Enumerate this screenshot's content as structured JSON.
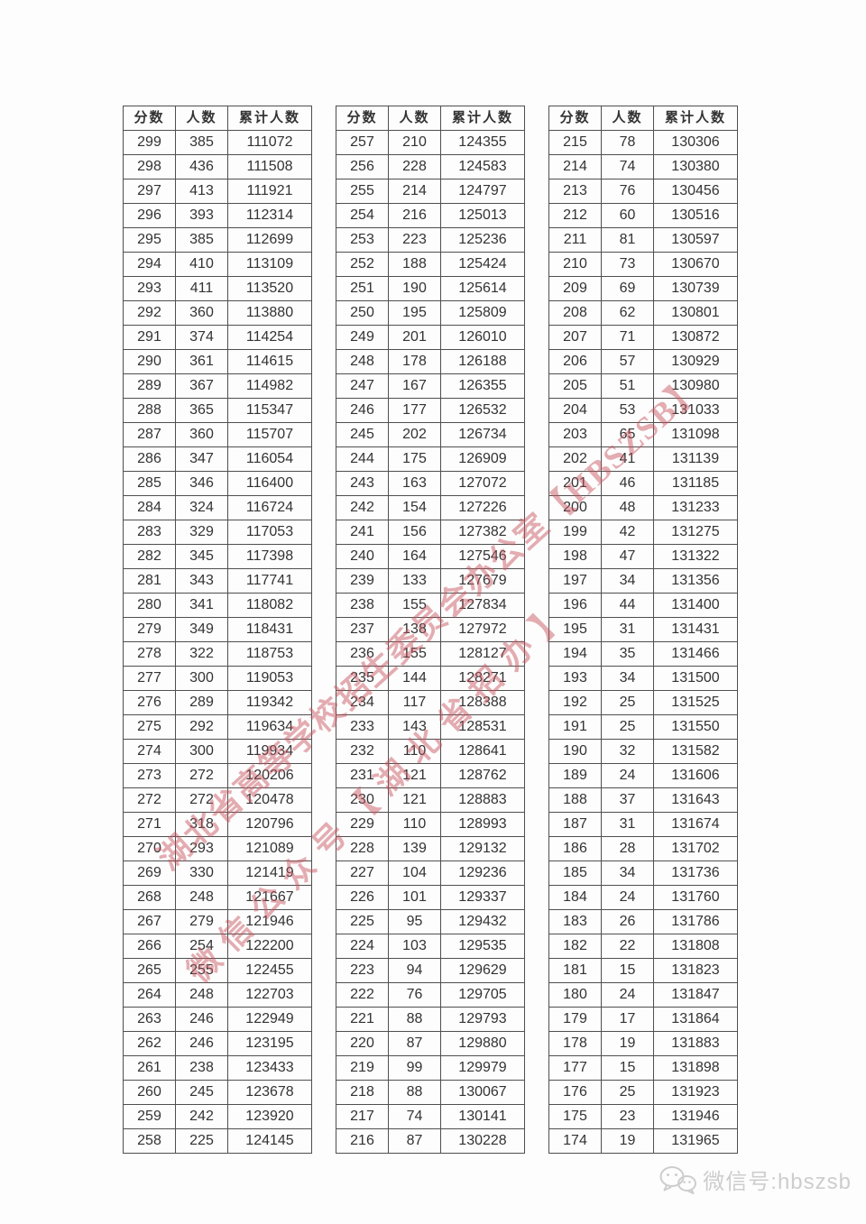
{
  "table_headers": [
    "分数",
    "人数",
    "累计人数"
  ],
  "tables": [
    {
      "name": "scores-299-258",
      "rows": [
        [
          299,
          385,
          111072
        ],
        [
          298,
          436,
          111508
        ],
        [
          297,
          413,
          111921
        ],
        [
          296,
          393,
          112314
        ],
        [
          295,
          385,
          112699
        ],
        [
          294,
          410,
          113109
        ],
        [
          293,
          411,
          113520
        ],
        [
          292,
          360,
          113880
        ],
        [
          291,
          374,
          114254
        ],
        [
          290,
          361,
          114615
        ],
        [
          289,
          367,
          114982
        ],
        [
          288,
          365,
          115347
        ],
        [
          287,
          360,
          115707
        ],
        [
          286,
          347,
          116054
        ],
        [
          285,
          346,
          116400
        ],
        [
          284,
          324,
          116724
        ],
        [
          283,
          329,
          117053
        ],
        [
          282,
          345,
          117398
        ],
        [
          281,
          343,
          117741
        ],
        [
          280,
          341,
          118082
        ],
        [
          279,
          349,
          118431
        ],
        [
          278,
          322,
          118753
        ],
        [
          277,
          300,
          119053
        ],
        [
          276,
          289,
          119342
        ],
        [
          275,
          292,
          119634
        ],
        [
          274,
          300,
          119934
        ],
        [
          273,
          272,
          120206
        ],
        [
          272,
          272,
          120478
        ],
        [
          271,
          318,
          120796
        ],
        [
          270,
          293,
          121089
        ],
        [
          269,
          330,
          121419
        ],
        [
          268,
          248,
          121667
        ],
        [
          267,
          279,
          121946
        ],
        [
          266,
          254,
          122200
        ],
        [
          265,
          255,
          122455
        ],
        [
          264,
          248,
          122703
        ],
        [
          263,
          246,
          122949
        ],
        [
          262,
          246,
          123195
        ],
        [
          261,
          238,
          123433
        ],
        [
          260,
          245,
          123678
        ],
        [
          259,
          242,
          123920
        ],
        [
          258,
          225,
          124145
        ]
      ]
    },
    {
      "name": "scores-257-216",
      "rows": [
        [
          257,
          210,
          124355
        ],
        [
          256,
          228,
          124583
        ],
        [
          255,
          214,
          124797
        ],
        [
          254,
          216,
          125013
        ],
        [
          253,
          223,
          125236
        ],
        [
          252,
          188,
          125424
        ],
        [
          251,
          190,
          125614
        ],
        [
          250,
          195,
          125809
        ],
        [
          249,
          201,
          126010
        ],
        [
          248,
          178,
          126188
        ],
        [
          247,
          167,
          126355
        ],
        [
          246,
          177,
          126532
        ],
        [
          245,
          202,
          126734
        ],
        [
          244,
          175,
          126909
        ],
        [
          243,
          163,
          127072
        ],
        [
          242,
          154,
          127226
        ],
        [
          241,
          156,
          127382
        ],
        [
          240,
          164,
          127546
        ],
        [
          239,
          133,
          127679
        ],
        [
          238,
          155,
          127834
        ],
        [
          237,
          138,
          127972
        ],
        [
          236,
          155,
          128127
        ],
        [
          235,
          144,
          128271
        ],
        [
          234,
          117,
          128388
        ],
        [
          233,
          143,
          128531
        ],
        [
          232,
          110,
          128641
        ],
        [
          231,
          121,
          128762
        ],
        [
          230,
          121,
          128883
        ],
        [
          229,
          110,
          128993
        ],
        [
          228,
          139,
          129132
        ],
        [
          227,
          104,
          129236
        ],
        [
          226,
          101,
          129337
        ],
        [
          225,
          95,
          129432
        ],
        [
          224,
          103,
          129535
        ],
        [
          223,
          94,
          129629
        ],
        [
          222,
          76,
          129705
        ],
        [
          221,
          88,
          129793
        ],
        [
          220,
          87,
          129880
        ],
        [
          219,
          99,
          129979
        ],
        [
          218,
          88,
          130067
        ],
        [
          217,
          74,
          130141
        ],
        [
          216,
          87,
          130228
        ]
      ]
    },
    {
      "name": "scores-215-174",
      "rows": [
        [
          215,
          78,
          130306
        ],
        [
          214,
          74,
          130380
        ],
        [
          213,
          76,
          130456
        ],
        [
          212,
          60,
          130516
        ],
        [
          211,
          81,
          130597
        ],
        [
          210,
          73,
          130670
        ],
        [
          209,
          69,
          130739
        ],
        [
          208,
          62,
          130801
        ],
        [
          207,
          71,
          130872
        ],
        [
          206,
          57,
          130929
        ],
        [
          205,
          51,
          130980
        ],
        [
          204,
          53,
          131033
        ],
        [
          203,
          65,
          131098
        ],
        [
          202,
          41,
          131139
        ],
        [
          201,
          46,
          131185
        ],
        [
          200,
          48,
          131233
        ],
        [
          199,
          42,
          131275
        ],
        [
          198,
          47,
          131322
        ],
        [
          197,
          34,
          131356
        ],
        [
          196,
          44,
          131400
        ],
        [
          195,
          31,
          131431
        ],
        [
          194,
          35,
          131466
        ],
        [
          193,
          34,
          131500
        ],
        [
          192,
          25,
          131525
        ],
        [
          191,
          25,
          131550
        ],
        [
          190,
          32,
          131582
        ],
        [
          189,
          24,
          131606
        ],
        [
          188,
          37,
          131643
        ],
        [
          187,
          31,
          131674
        ],
        [
          186,
          28,
          131702
        ],
        [
          185,
          34,
          131736
        ],
        [
          184,
          24,
          131760
        ],
        [
          183,
          26,
          131786
        ],
        [
          182,
          22,
          131808
        ],
        [
          181,
          15,
          131823
        ],
        [
          180,
          24,
          131847
        ],
        [
          179,
          17,
          131864
        ],
        [
          178,
          19,
          131883
        ],
        [
          177,
          15,
          131898
        ],
        [
          176,
          25,
          131923
        ],
        [
          175,
          23,
          131946
        ],
        [
          174,
          19,
          131965
        ]
      ]
    }
  ],
  "watermark": {
    "line1": "湖北省高等学校招生委员会办公室【HBSZSB】",
    "line2": "微信公众号【湖北省招办】",
    "color": "#c6545e"
  },
  "footer": {
    "wechat_label": "微信号:hbszsb"
  },
  "colors": {
    "table_text": "#333333",
    "table_border": "#4f4f4f",
    "footer_gray": "#cdcdcd",
    "background": "#fdfdfd"
  }
}
